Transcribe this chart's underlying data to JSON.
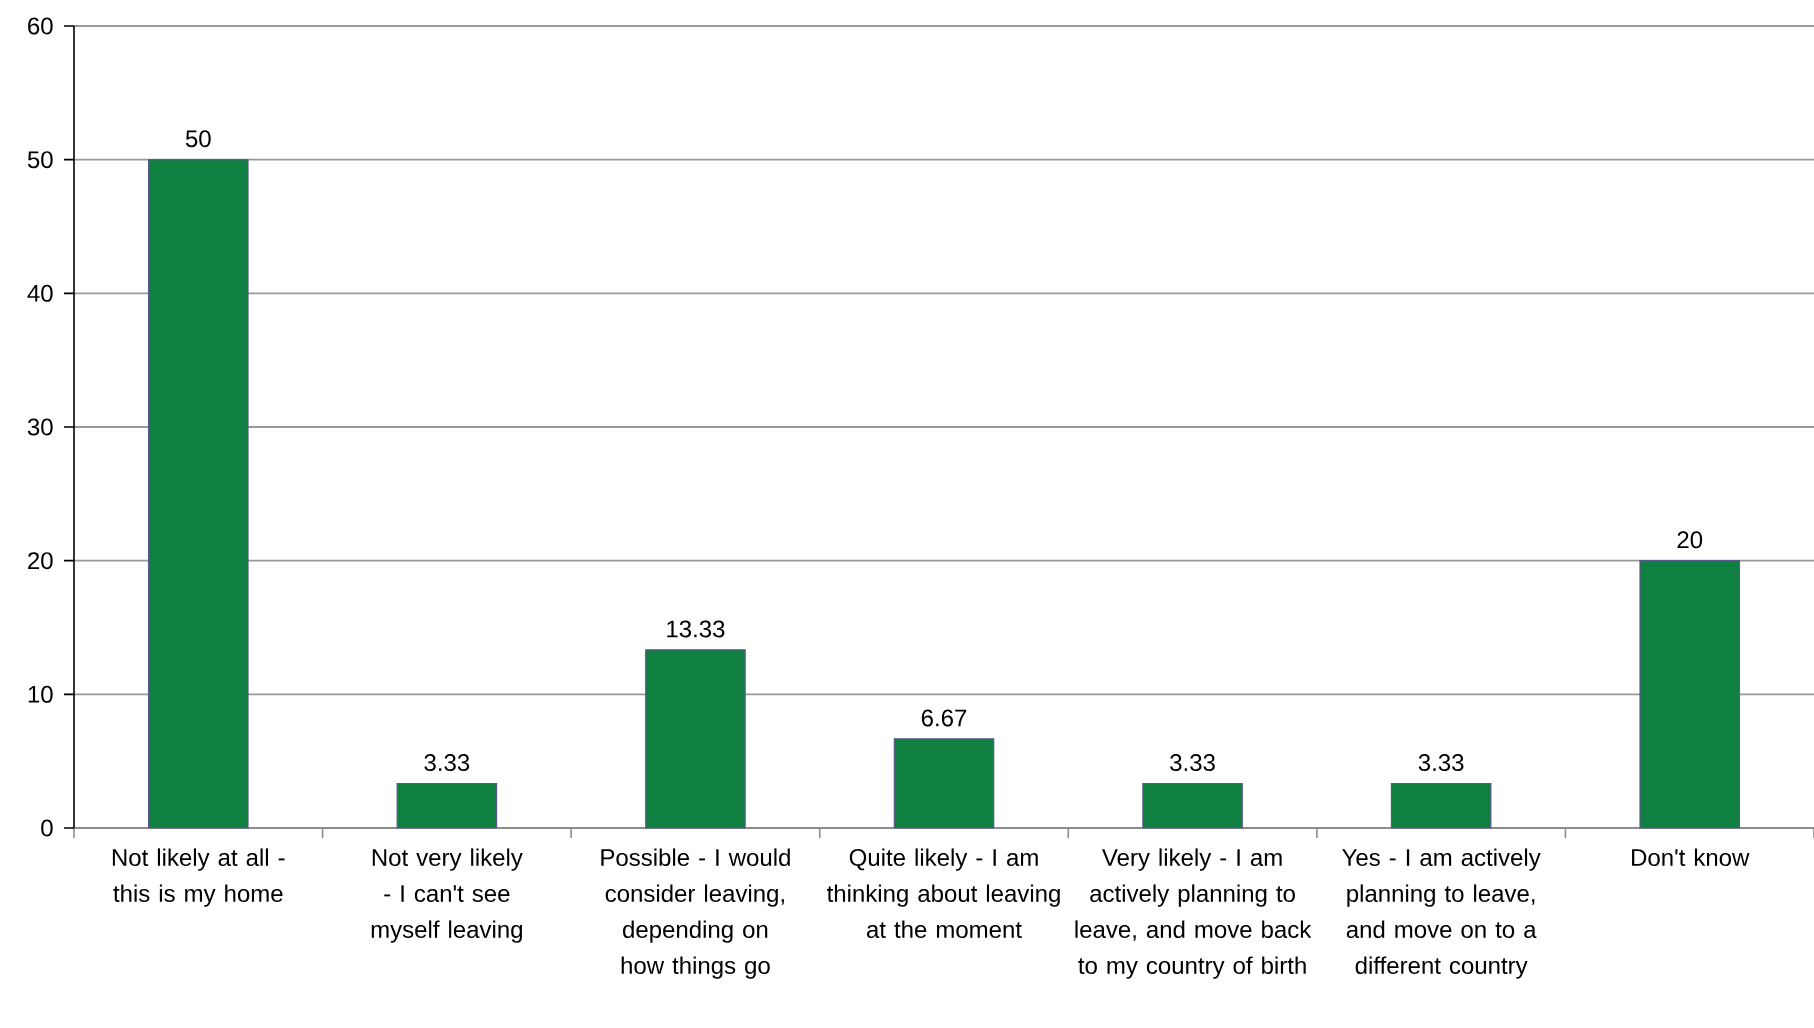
{
  "chart_data": {
    "type": "bar",
    "categories": [
      "Not likely at all - this is my home",
      "Not very likely - I can't see myself leaving",
      "Possible - I would consider leaving, depending on how things go",
      "Quite likely - I am thinking about leaving at the moment",
      "Very likely - I am actively planning to leave, and move back to my country of birth",
      "Yes - I am actively planning to leave, and move on to a different country",
      "Don't know"
    ],
    "values": [
      50,
      3.33,
      13.33,
      6.67,
      3.33,
      3.33,
      20
    ],
    "color": "#108040",
    "ylim": [
      0,
      60
    ],
    "yticks": [
      0,
      10,
      20,
      30,
      40,
      50,
      60
    ],
    "grid": "y",
    "data_labels": true
  }
}
